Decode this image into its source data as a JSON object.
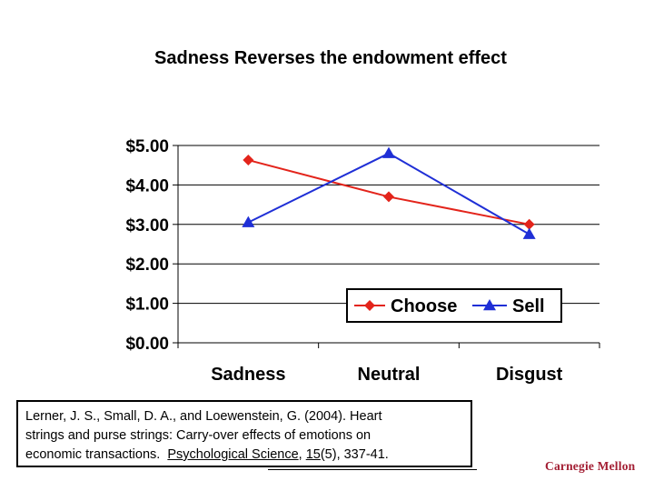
{
  "chart_data": {
    "type": "line",
    "title": "Sadness Reverses the endowment effect",
    "categories": [
      "Sadness",
      "Neutral",
      "Disgust"
    ],
    "series": [
      {
        "name": "Choose",
        "values": [
          4.63,
          3.7,
          3.0
        ],
        "color": "#e3241b",
        "marker": "diamond"
      },
      {
        "name": "Sell",
        "values": [
          3.05,
          4.8,
          2.75
        ],
        "color": "#1f2fd6",
        "marker": "triangle"
      }
    ],
    "ylim": [
      0,
      5
    ],
    "yticks": [
      0,
      1,
      2,
      3,
      4,
      5
    ],
    "ytick_labels": [
      "$0.00",
      "$1.00",
      "$2.00",
      "$3.00",
      "$4.00",
      "$5.00"
    ],
    "xlabel": "",
    "ylabel": "",
    "grid": true,
    "legend_position": "bottom-right"
  },
  "citation": {
    "authors": "Lerner, J. S., Small, D. A., and Loewenstein, G. (2004).  Heart",
    "line2": "strings and purse strings:  Carry-over effects of emotions on",
    "line3_pre": "economic transactions.  ",
    "journal": "Psychological Science",
    "comma": ", ",
    "volume": "15",
    "issue_pages": "(5), 337-41."
  },
  "brand": {
    "name": "Carnegie Mellon",
    "color": "#a31f34"
  }
}
